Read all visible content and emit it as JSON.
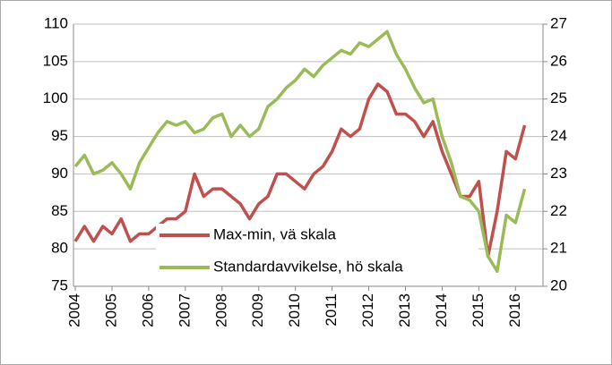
{
  "chart_data": {
    "type": "line",
    "x": [
      2004,
      2004.25,
      2004.5,
      2004.75,
      2005,
      2005.25,
      2005.5,
      2005.75,
      2006,
      2006.25,
      2006.5,
      2006.75,
      2007,
      2007.25,
      2007.5,
      2007.75,
      2008,
      2008.25,
      2008.5,
      2008.75,
      2009,
      2009.25,
      2009.5,
      2009.75,
      2010,
      2010.25,
      2010.5,
      2010.75,
      2011,
      2011.25,
      2011.5,
      2011.75,
      2012,
      2012.25,
      2012.5,
      2012.75,
      2013,
      2013.25,
      2013.5,
      2013.75,
      2014,
      2014.25,
      2014.5,
      2014.75,
      2015,
      2015.25,
      2015.5,
      2015.75,
      2016,
      2016.25
    ],
    "series": [
      {
        "name": "Max-min, vä skala",
        "color": "#c0504d",
        "axis": "y",
        "values": [
          81,
          83,
          81,
          83,
          82,
          84,
          81,
          82,
          82,
          83,
          84,
          84,
          85,
          90,
          87,
          88,
          88,
          87,
          86,
          84,
          86,
          87,
          90,
          90,
          89,
          88,
          90,
          91,
          93,
          96,
          95,
          96,
          100,
          102,
          101,
          98,
          98,
          97,
          95,
          97,
          93,
          90,
          87,
          87,
          89,
          79,
          85,
          93,
          92,
          96.5
        ]
      },
      {
        "name": "Standardavvikelse, hö skala",
        "color": "#9bbb59",
        "axis": "y2",
        "values": [
          23.2,
          23.5,
          23.0,
          23.1,
          23.3,
          23.0,
          22.6,
          23.3,
          23.7,
          24.1,
          24.4,
          24.3,
          24.4,
          24.1,
          24.2,
          24.5,
          24.6,
          24.0,
          24.3,
          24.0,
          24.2,
          24.8,
          25.0,
          25.3,
          25.5,
          25.8,
          25.6,
          25.9,
          26.1,
          26.3,
          26.2,
          26.5,
          26.4,
          26.6,
          26.8,
          26.2,
          25.8,
          25.3,
          24.9,
          25.0,
          24.0,
          23.3,
          22.4,
          22.3,
          22.0,
          20.8,
          20.4,
          21.9,
          21.7,
          22.6
        ]
      }
    ],
    "xlim": [
      2003.95,
      2016.75
    ],
    "xticks": [
      2004,
      2005,
      2006,
      2007,
      2008,
      2009,
      2010,
      2011,
      2012,
      2013,
      2014,
      2015,
      2016
    ],
    "ylim": [
      75,
      110
    ],
    "yticks": [
      75,
      80,
      85,
      90,
      95,
      100,
      105,
      110
    ],
    "y2lim": [
      20,
      27
    ],
    "y2ticks": [
      20,
      21,
      22,
      23,
      24,
      25,
      26,
      27
    ],
    "grid": true,
    "legend": "lower center"
  }
}
